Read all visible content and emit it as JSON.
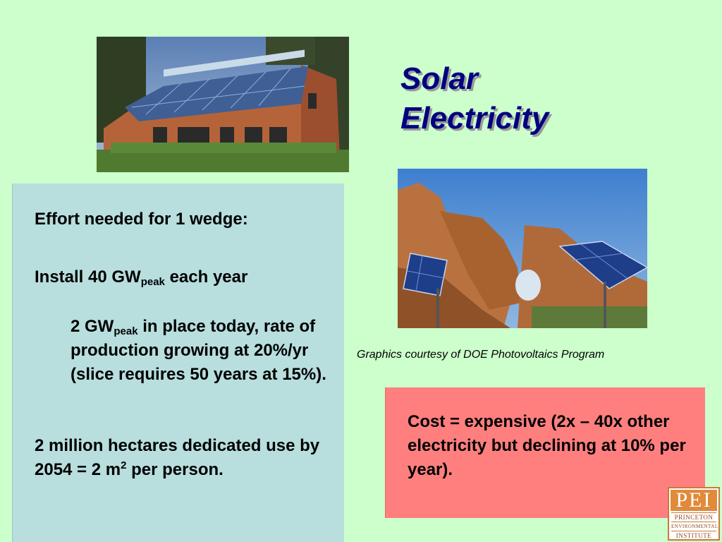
{
  "title": {
    "line1": "Solar",
    "line2": "Electricity"
  },
  "colors": {
    "background": "#ccffcc",
    "title": "#000080",
    "blue_box": "#b8dede",
    "red_box": "#ff7f7f",
    "logo_accent": "#e08a3a"
  },
  "blue_box": {
    "effort": "Effort needed for 1 wedge:",
    "install_prefix": "Install 40 GW",
    "install_sub": "peak",
    "install_suffix": " each year",
    "detail_prefix": "2 GW",
    "detail_sub": "peak",
    "detail_suffix": " in place today, rate of production growing at 20%/yr (slice requires 50 years at 15%).",
    "hectares_prefix": "2 million hectares dedicated use by 2054 = 2 m",
    "hectares_sup": "2",
    "hectares_suffix": " per person."
  },
  "caption": "Graphics courtesy of DOE Photovoltaics Program",
  "red_box": {
    "cost": "Cost = expensive (2x – 40x other electricity but declining at 10% per year)."
  },
  "logo": {
    "mark": "PEI",
    "line1": "PRINCETON",
    "line2": "ENVIRONMENTAL",
    "line3": "INSTITUTE"
  },
  "images": {
    "house_photo": "solar-house-photo",
    "desert_photo": "desert-solar-panels-photo"
  }
}
